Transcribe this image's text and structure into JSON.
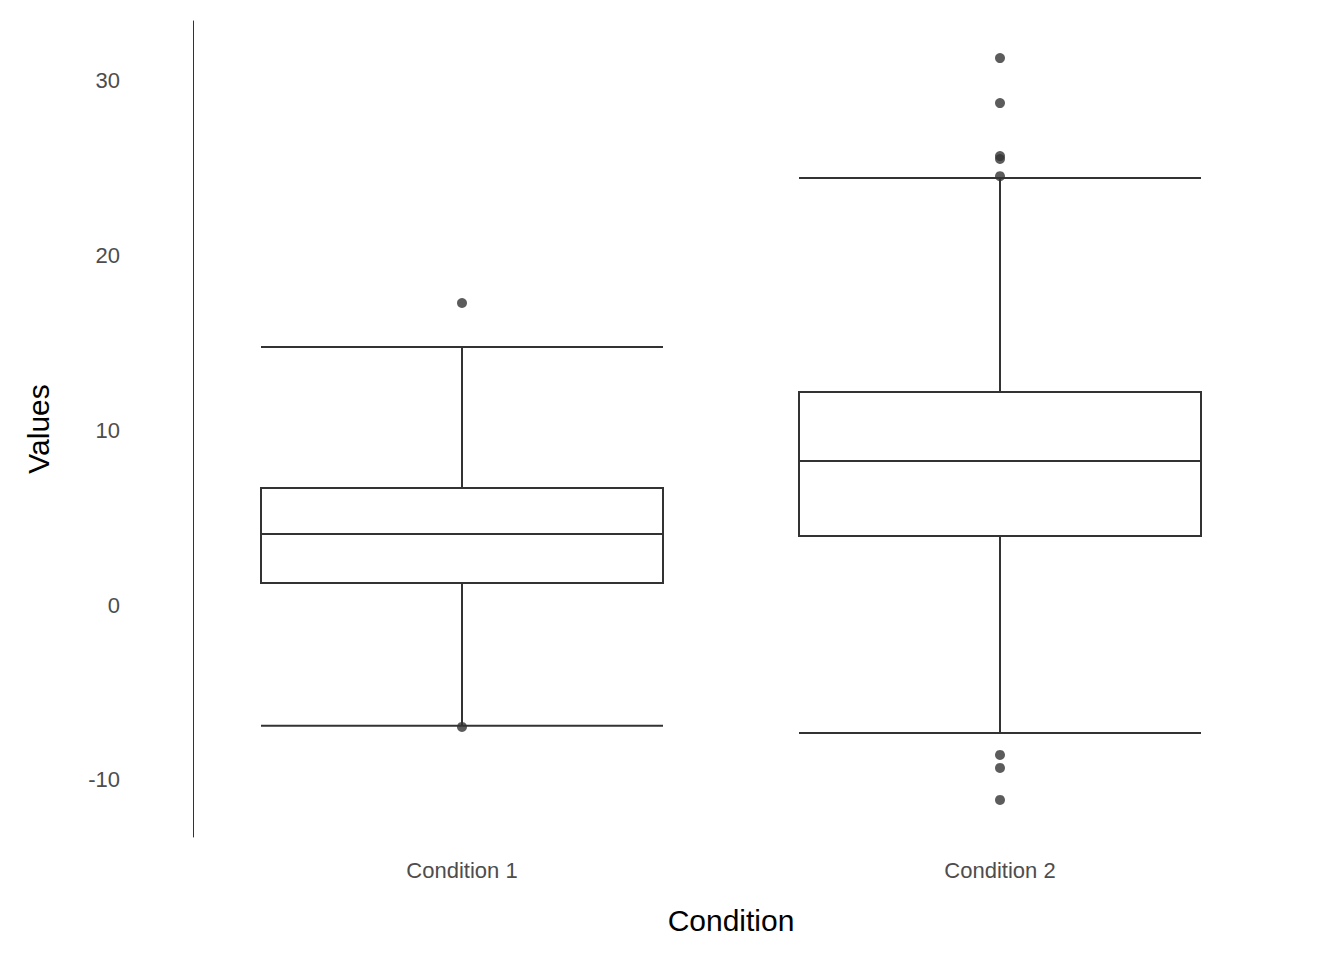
{
  "chart_data": {
    "type": "boxplot",
    "x_label": "Condition",
    "y_label": "Values",
    "categories": [
      "Condition 1",
      "Condition 2"
    ],
    "series": [
      {
        "color": "#333333",
        "values": [
          [
            -6.9,
            1.26,
            4.06,
            6.69,
            14.74
          ],
          [
            -7.31,
            3.94,
            8.23,
            12.17,
            24.4
          ]
        ],
        "outliers": [
          [
            17.26,
            -6.97
          ],
          [
            31.26,
            28.69,
            25.66,
            25.49,
            24.51,
            -8.57,
            -9.31,
            -11.14
          ]
        ]
      }
    ],
    "ylim": [
      -13.26,
      33.38
    ],
    "yticks": [
      -10,
      0,
      10,
      20,
      30
    ],
    "grid": false
  }
}
